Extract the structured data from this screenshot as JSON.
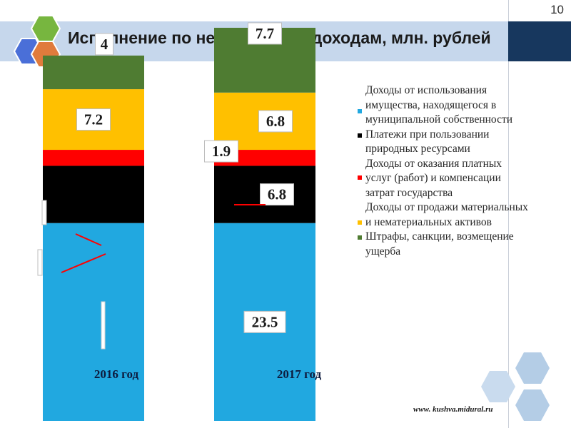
{
  "slide": {
    "page_number": "10",
    "title": "Исполнение по неналоговым доходам, млн. рублей",
    "footer_url": "www. kushva.midural.ru"
  },
  "colors": {
    "title_band": "#c6d7ec",
    "navy_box": "#17375e",
    "hex_blue": "#4a6fd8",
    "hex_green": "#77b63f",
    "hex_orange": "#e07b3c",
    "hex_light": "#b4cde6"
  },
  "chart_data": {
    "type": "bar",
    "stacked": true,
    "categories": [
      "2016 год",
      "2017 год"
    ],
    "series": [
      {
        "name": "Доходы от использования имущества, находящегося в муниципальной собственности",
        "color": "#21a8e0",
        "values": [
          null,
          23.5
        ],
        "labels": [
          "",
          "23.5"
        ]
      },
      {
        "name": "Платежи при пользовании природных ресурсами",
        "color": "#000000",
        "values": [
          null,
          6.8
        ],
        "labels": [
          "",
          "6.8"
        ]
      },
      {
        "name": "Доходы от оказания платных услуг (работ) и компенсации затрат государства",
        "color": "#ff0000",
        "values": [
          null,
          1.9
        ],
        "labels": [
          "",
          "1.9"
        ]
      },
      {
        "name": "Доходы от продажи материальных и нематериальных активов",
        "color": "#ffc000",
        "values": [
          7.2,
          6.8
        ],
        "labels": [
          "7.2",
          "6.8"
        ]
      },
      {
        "name": "Штрафы, санкции, возмещение ущерба",
        "color": "#4f7c32",
        "values": [
          4,
          7.7
        ],
        "labels": [
          "4",
          "7.7"
        ]
      }
    ],
    "legend_position": "right",
    "grid": false
  }
}
